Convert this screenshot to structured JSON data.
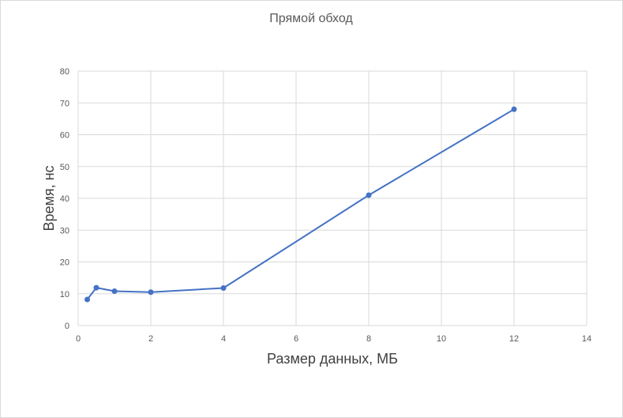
{
  "chart_data": {
    "type": "scatter",
    "title": "Прямой обход",
    "xlabel": "Размер данных, МБ",
    "ylabel": "Время, нс",
    "xlim": [
      0,
      14
    ],
    "ylim": [
      0,
      80
    ],
    "xticks": [
      0,
      2,
      4,
      6,
      8,
      10,
      12,
      14
    ],
    "yticks": [
      0,
      10,
      20,
      30,
      40,
      50,
      60,
      70,
      80
    ],
    "grid": true,
    "legend": "none",
    "series": [
      {
        "color": "#4472c4",
        "points": [
          {
            "x": 0.25,
            "y": 8.2
          },
          {
            "x": 0.5,
            "y": 11.9
          },
          {
            "x": 1,
            "y": 10.8
          },
          {
            "x": 2,
            "y": 10.5
          },
          {
            "x": 4,
            "y": 11.8
          },
          {
            "x": 8,
            "y": 41
          },
          {
            "x": 12,
            "y": 68
          }
        ]
      }
    ]
  }
}
